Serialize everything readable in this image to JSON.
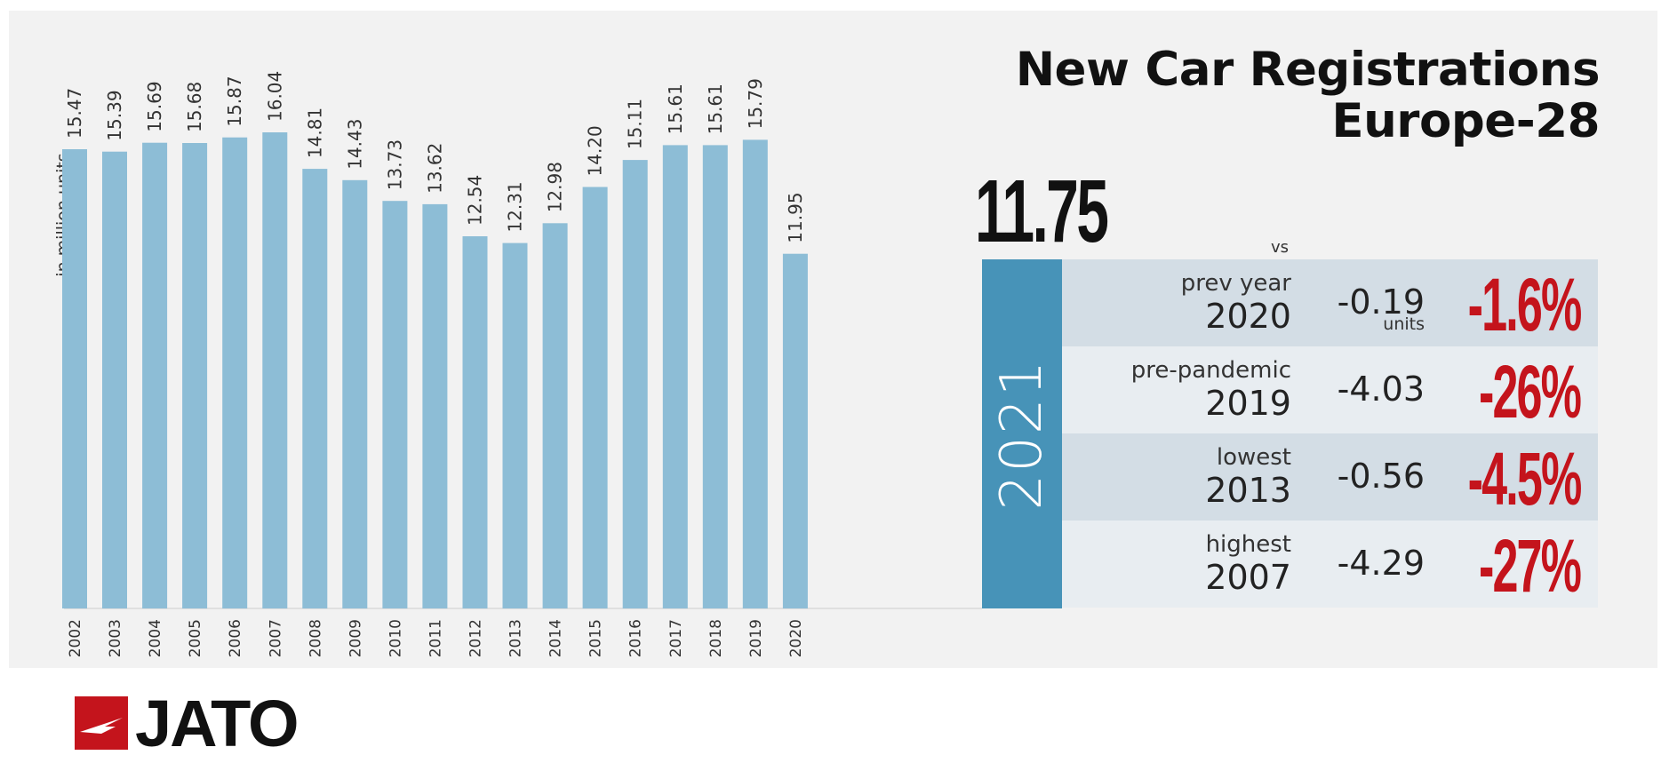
{
  "title": {
    "line1": "New Car Registrations",
    "line2": "Europe-28"
  },
  "chart_data": {
    "type": "bar",
    "ylabel": "in million units",
    "categories": [
      "2002",
      "2003",
      "2004",
      "2005",
      "2006",
      "2007",
      "2008",
      "2009",
      "2010",
      "2011",
      "2012",
      "2013",
      "2014",
      "2015",
      "2016",
      "2017",
      "2018",
      "2019",
      "2020"
    ],
    "values": [
      15.47,
      15.39,
      15.69,
      15.68,
      15.87,
      16.04,
      14.81,
      14.43,
      13.73,
      13.62,
      12.54,
      12.31,
      12.98,
      14.2,
      15.11,
      15.61,
      15.61,
      15.79,
      11.95
    ],
    "value_labels": [
      "15.47",
      "15.39",
      "15.69",
      "15.68",
      "15.87",
      "16.04",
      "14.81",
      "14.43",
      "13.73",
      "13.62",
      "12.54",
      "12.31",
      "12.98",
      "14.20",
      "15.11",
      "15.61",
      "15.61",
      "15.79",
      "11.95"
    ],
    "ylim": [
      0,
      16.04
    ],
    "highlight": {
      "category": "2021",
      "value": 11.75,
      "value_label": "11.75"
    },
    "bar_color": "#8dbdd6",
    "highlight_color": "#4793b8",
    "grid": false
  },
  "comparison": {
    "vs_label": "vs",
    "rows": [
      {
        "label": "prev year",
        "year": "2020",
        "delta": "-0.19",
        "units": "units",
        "pct": "-1.6%"
      },
      {
        "label": "pre-pandemic",
        "year": "2019",
        "delta": "-4.03",
        "units": "",
        "pct": "-26%"
      },
      {
        "label": "lowest",
        "year": "2013",
        "delta": "-0.56",
        "units": "",
        "pct": "-4.5%"
      },
      {
        "label": "highest",
        "year": "2007",
        "delta": "-4.29",
        "units": "",
        "pct": "-27%"
      }
    ]
  },
  "brand": {
    "name": "JATO",
    "color": "#c4141c"
  }
}
